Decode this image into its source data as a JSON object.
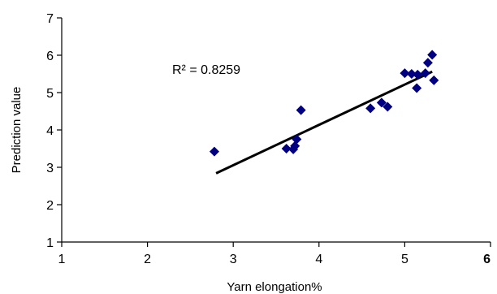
{
  "chart_data": {
    "type": "scatter",
    "title": "",
    "xlabel": "Yarn elongation%",
    "ylabel": "Prediction value",
    "xlim": [
      1,
      6
    ],
    "ylim": [
      1,
      7
    ],
    "xticks": [
      "1",
      "2",
      "3",
      "4",
      "5",
      "6"
    ],
    "yticks": [
      "1",
      "2",
      "3",
      "4",
      "5",
      "6",
      "7"
    ],
    "grid": false,
    "legend": "none",
    "annotation": "R² = 0.8259",
    "marker_color": "#000080",
    "trendline_color": "#000000",
    "points": [
      {
        "x": 2.78,
        "y": 3.42
      },
      {
        "x": 3.62,
        "y": 3.5
      },
      {
        "x": 3.7,
        "y": 3.48
      },
      {
        "x": 3.72,
        "y": 3.57
      },
      {
        "x": 3.74,
        "y": 3.75
      },
      {
        "x": 3.79,
        "y": 4.53
      },
      {
        "x": 4.6,
        "y": 4.58
      },
      {
        "x": 4.73,
        "y": 4.73
      },
      {
        "x": 4.8,
        "y": 4.62
      },
      {
        "x": 5.0,
        "y": 5.52
      },
      {
        "x": 5.08,
        "y": 5.5
      },
      {
        "x": 5.14,
        "y": 5.12
      },
      {
        "x": 5.15,
        "y": 5.48
      },
      {
        "x": 5.24,
        "y": 5.52
      },
      {
        "x": 5.27,
        "y": 5.8
      },
      {
        "x": 5.32,
        "y": 6.01
      },
      {
        "x": 5.34,
        "y": 5.33
      }
    ],
    "trendline": {
      "x": [
        2.8,
        5.32
      ],
      "y": [
        2.84,
        5.56
      ]
    }
  }
}
